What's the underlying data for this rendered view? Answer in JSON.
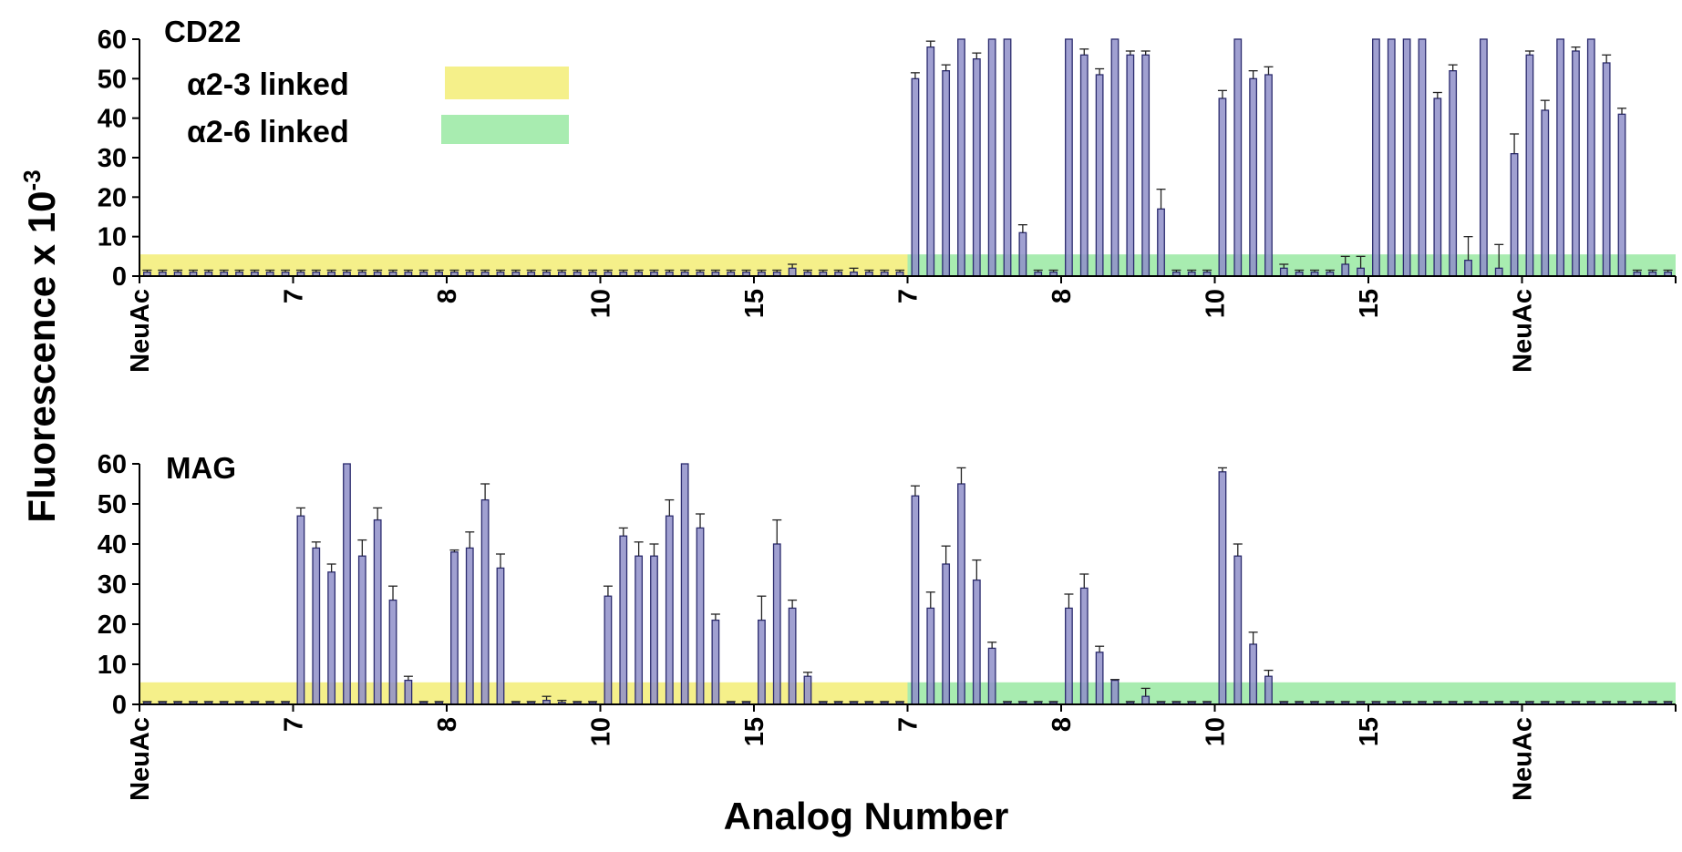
{
  "chart_data": {
    "type": "bar",
    "ylabel": "Fluorescence x 10",
    "ylabel_exponent": "-3",
    "xlabel": "Analog Number",
    "ylim": [
      0,
      60
    ],
    "yticks": [
      "0",
      "10",
      "20",
      "30",
      "40",
      "50",
      "60"
    ],
    "legend": {
      "placement": "top-left",
      "entries": [
        {
          "label": "α2-3 linked",
          "color": "#f5f08a"
        },
        {
          "label": "α2-6 linked",
          "color": "#a8ecb0"
        }
      ]
    },
    "bar_color": "#8f8fc9",
    "bar_edge_color": "#2b2b6e",
    "band_value": 5.5,
    "group_labels": [
      "NeuAc",
      "7",
      "8",
      "10",
      "15",
      "7",
      "8",
      "10",
      "15",
      "NeuAc"
    ],
    "panels": [
      {
        "title": "CD22",
        "values": [
          1,
          1,
          1,
          1,
          1,
          1,
          1,
          1,
          1,
          1,
          1,
          1,
          1,
          1,
          1,
          1,
          1,
          1,
          1,
          1,
          1,
          1,
          1,
          1,
          1,
          1,
          1,
          1,
          1,
          1,
          1,
          1,
          1,
          1,
          1,
          1,
          1,
          1,
          1,
          1,
          1,
          1,
          2,
          1,
          1,
          1,
          1,
          1,
          1,
          1,
          50,
          58,
          52,
          60,
          55,
          60,
          60,
          11,
          1,
          1,
          60,
          56,
          51,
          60,
          56,
          56,
          17,
          1,
          1,
          1,
          45,
          60,
          50,
          51,
          2,
          1,
          1,
          1,
          3,
          2,
          60,
          60,
          60,
          60,
          45,
          52,
          4,
          60,
          2,
          31,
          56,
          42,
          60,
          57,
          60,
          54,
          41,
          1,
          1,
          1
        ],
        "errors": [
          0.5,
          0.5,
          0.5,
          0.5,
          0.5,
          0.5,
          0.5,
          0.5,
          0.5,
          0.5,
          0.5,
          0.5,
          0.5,
          0.5,
          0.5,
          0.5,
          0.5,
          0.5,
          0.5,
          0.5,
          0.5,
          0.5,
          0.5,
          0.5,
          0.5,
          0.5,
          0.5,
          0.5,
          0.5,
          0.5,
          0.5,
          0.5,
          0.5,
          0.5,
          0.5,
          0.5,
          0.5,
          0.5,
          0.5,
          0.5,
          0.5,
          0.5,
          1,
          0.5,
          0.5,
          0.5,
          1,
          0.5,
          0.5,
          0.5,
          1.5,
          1.5,
          1.5,
          0,
          1.5,
          0,
          0,
          2,
          0.5,
          0.5,
          0,
          1.5,
          1.5,
          0,
          1,
          1,
          5,
          0.5,
          0.5,
          0.5,
          2,
          0,
          2,
          2,
          1,
          0.5,
          0.5,
          0.5,
          2,
          3,
          0,
          0,
          0,
          0,
          1.5,
          1.5,
          6,
          0,
          6,
          5,
          1,
          2.5,
          0,
          1,
          0,
          2,
          1.5,
          0.5,
          0.5,
          0.5
        ]
      },
      {
        "title": "MAG",
        "values": [
          0.5,
          0.5,
          0.5,
          0.5,
          0.5,
          0.5,
          0.5,
          0.5,
          0.5,
          0.5,
          47,
          39,
          33,
          60,
          37,
          46,
          26,
          6,
          0.5,
          0.5,
          38,
          39,
          51,
          34,
          0.5,
          0.5,
          1,
          0.5,
          0.5,
          0.5,
          27,
          42,
          37,
          37,
          47,
          60,
          44,
          21,
          0.5,
          0.5,
          21,
          40,
          24,
          7,
          0.5,
          0.5,
          0.5,
          0.5,
          0.5,
          0.5,
          52,
          24,
          35,
          55,
          31,
          14,
          0.5,
          0.5,
          0.5,
          0.5,
          24,
          29,
          13,
          6,
          0.5,
          2,
          0.5,
          0.5,
          0.5,
          0.5,
          58,
          37,
          15,
          7,
          0.5,
          0.5,
          0.5,
          0.5,
          0.5,
          0.5,
          0.5,
          0.5,
          0.5,
          0.5,
          0.5,
          0.5,
          0.5,
          0.5,
          0.5,
          0.5,
          0.5,
          0.5,
          0.5,
          0.5,
          0.5,
          0.5,
          0.5,
          0.5,
          0.5,
          0.5
        ],
        "errors": [
          0.2,
          0.2,
          0.2,
          0.2,
          0.2,
          0.2,
          0.2,
          0.2,
          0.2,
          0.2,
          2,
          1.5,
          2,
          0,
          4,
          3,
          3.5,
          1,
          0.2,
          0.2,
          0.5,
          4,
          4,
          3.5,
          0.2,
          0.2,
          1,
          0.5,
          0.2,
          0.2,
          2.5,
          2,
          3.5,
          3,
          4,
          0,
          3.5,
          1.5,
          0.2,
          0.2,
          6,
          6,
          2,
          1,
          0.2,
          0.2,
          0.2,
          0.2,
          0.2,
          0.2,
          2.5,
          4,
          4.5,
          4,
          5,
          1.5,
          0.2,
          0.2,
          0.2,
          0.2,
          3.5,
          3.5,
          1.5,
          0.2,
          0.2,
          2,
          0.2,
          0.2,
          0.2,
          0.2,
          1,
          3,
          3,
          1.5,
          0.2,
          0.2,
          0.2,
          0.2,
          0.2,
          0.2,
          0.2,
          0.2,
          0.2,
          0.2,
          0.2,
          0.2,
          0.2,
          0.2,
          0.2,
          0.2,
          0.2,
          0.2,
          0.2,
          0.2,
          0.2,
          0.2,
          0.2,
          0.2,
          0.2,
          0.2
        ]
      }
    ]
  }
}
